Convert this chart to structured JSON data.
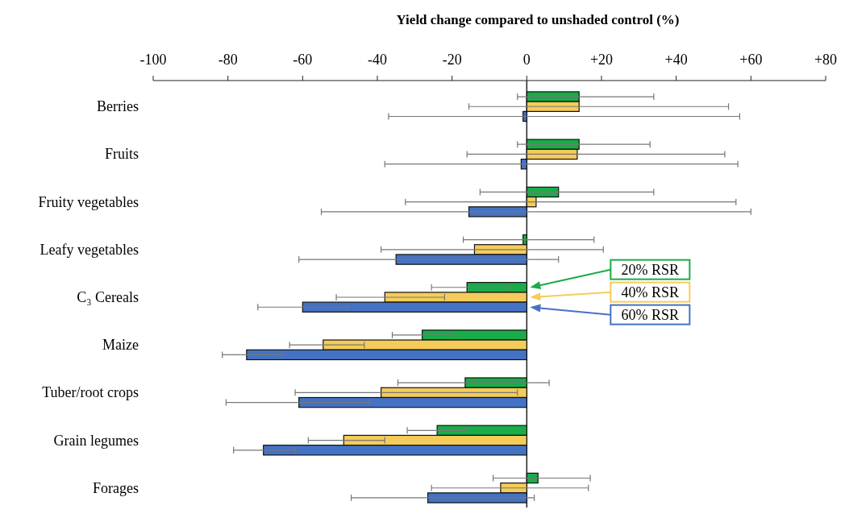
{
  "chart_data": {
    "type": "bar",
    "orientation": "horizontal",
    "title": "Yield change compared to unshaded control (%)",
    "categories": [
      "Berries",
      "Fruits",
      "Fruity vegetables",
      "Leafy vegetables",
      "C₃ Cereals",
      "Maize",
      "Tuber/root crops",
      "Grain legumes",
      "Forages"
    ],
    "series": [
      {
        "name": "20% RSR",
        "color": "#1aab4a",
        "values": [
          14,
          14,
          8.5,
          -1,
          -16,
          -28,
          -16.5,
          -24,
          3
        ],
        "errors": [
          [
            -2.5,
            34
          ],
          [
            -2.5,
            33
          ],
          [
            -12.5,
            34
          ],
          [
            -17,
            18
          ],
          [
            -25.5,
            -5
          ],
          [
            -36,
            -20
          ],
          [
            -34.5,
            6
          ],
          [
            -32,
            -16
          ],
          [
            -9,
            17
          ]
        ]
      },
      {
        "name": "40% RSR",
        "color": "#f5cc5a",
        "values": [
          14,
          13.5,
          2.5,
          -14,
          -38,
          -54.5,
          -39,
          -49,
          -7
        ],
        "errors": [
          [
            -15.5,
            54
          ],
          [
            -16,
            53
          ],
          [
            -32.5,
            56
          ],
          [
            -39,
            20.5
          ],
          [
            -51,
            -22
          ],
          [
            -63.5,
            -43.5
          ],
          [
            -62,
            -2.5
          ],
          [
            -58.5,
            -38
          ],
          [
            -25.5,
            16.5
          ]
        ]
      },
      {
        "name": "60% RSR",
        "color": "#4472c4",
        "values": [
          -1,
          -1.5,
          -15.5,
          -35,
          -60,
          -75,
          -61,
          -70.5,
          -26.5
        ],
        "errors": [
          [
            -37,
            57
          ],
          [
            -38,
            56.5
          ],
          [
            -55,
            60
          ],
          [
            -61,
            8.5
          ],
          [
            -72,
            -48
          ],
          [
            -81.5,
            -65.5
          ],
          [
            -80.5,
            -42
          ],
          [
            -78.5,
            -62
          ],
          [
            -47,
            2
          ]
        ]
      }
    ],
    "xlim": [
      -100,
      80
    ],
    "xticks": [
      -100,
      -80,
      -60,
      -40,
      -20,
      0,
      {
        "value": 20,
        "label": "+20"
      },
      {
        "value": 40,
        "label": "+40"
      },
      {
        "value": 60,
        "label": "+60"
      },
      {
        "value": 80,
        "label": "+80"
      }
    ],
    "legend": "right"
  }
}
